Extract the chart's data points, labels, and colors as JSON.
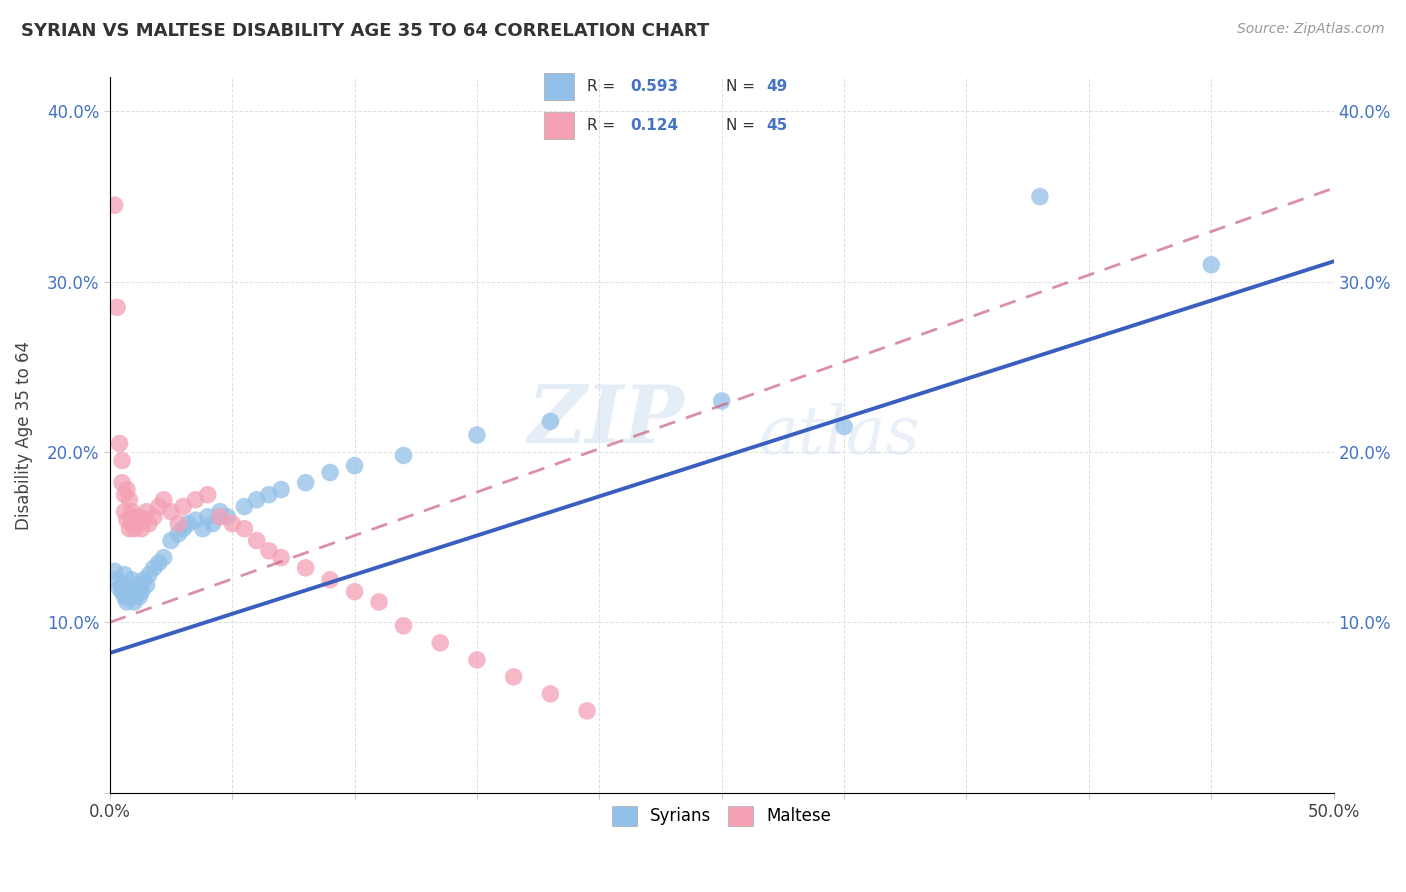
{
  "title": "SYRIAN VS MALTESE DISABILITY AGE 35 TO 64 CORRELATION CHART",
  "source": "Source: ZipAtlas.com",
  "ylabel": "Disability Age 35 to 64",
  "xlim": [
    0.0,
    0.5
  ],
  "ylim": [
    0.0,
    0.42
  ],
  "xtick_positions": [
    0.0,
    0.05,
    0.1,
    0.15,
    0.2,
    0.25,
    0.3,
    0.35,
    0.4,
    0.45,
    0.5
  ],
  "xtick_labels": [
    "0.0%",
    "",
    "",
    "",
    "",
    "",
    "",
    "",
    "",
    "",
    "50.0%"
  ],
  "ytick_positions": [
    0.0,
    0.1,
    0.2,
    0.3,
    0.4
  ],
  "ytick_labels": [
    "",
    "10.0%",
    "20.0%",
    "30.0%",
    "40.0%"
  ],
  "legend_r_syrian": "0.593",
  "legend_n_syrian": "49",
  "legend_r_maltese": "0.124",
  "legend_n_maltese": "45",
  "syrian_color": "#92C0E8",
  "maltese_color": "#F4A0B5",
  "syrian_line_color": "#3A5FBF",
  "maltese_line_color": "#CC6080",
  "watermark_zip": "ZIP",
  "watermark_atlas": "atlas",
  "background_color": "#ffffff",
  "plot_bg_color": "#ffffff",
  "grid_color": "#e0e0e0",
  "syrian_dots": [
    [
      0.002,
      0.13
    ],
    [
      0.003,
      0.125
    ],
    [
      0.004,
      0.12
    ],
    [
      0.005,
      0.118
    ],
    [
      0.005,
      0.122
    ],
    [
      0.006,
      0.115
    ],
    [
      0.006,
      0.128
    ],
    [
      0.007,
      0.112
    ],
    [
      0.007,
      0.118
    ],
    [
      0.008,
      0.115
    ],
    [
      0.008,
      0.12
    ],
    [
      0.009,
      0.118
    ],
    [
      0.009,
      0.125
    ],
    [
      0.01,
      0.112
    ],
    [
      0.01,
      0.118
    ],
    [
      0.011,
      0.122
    ],
    [
      0.012,
      0.115
    ],
    [
      0.012,
      0.12
    ],
    [
      0.013,
      0.118
    ],
    [
      0.014,
      0.125
    ],
    [
      0.015,
      0.122
    ],
    [
      0.016,
      0.128
    ],
    [
      0.018,
      0.132
    ],
    [
      0.02,
      0.135
    ],
    [
      0.022,
      0.138
    ],
    [
      0.025,
      0.148
    ],
    [
      0.028,
      0.152
    ],
    [
      0.03,
      0.155
    ],
    [
      0.032,
      0.158
    ],
    [
      0.035,
      0.16
    ],
    [
      0.038,
      0.155
    ],
    [
      0.04,
      0.162
    ],
    [
      0.042,
      0.158
    ],
    [
      0.045,
      0.165
    ],
    [
      0.048,
      0.162
    ],
    [
      0.055,
      0.168
    ],
    [
      0.06,
      0.172
    ],
    [
      0.065,
      0.175
    ],
    [
      0.07,
      0.178
    ],
    [
      0.08,
      0.182
    ],
    [
      0.09,
      0.188
    ],
    [
      0.1,
      0.192
    ],
    [
      0.12,
      0.198
    ],
    [
      0.15,
      0.21
    ],
    [
      0.18,
      0.218
    ],
    [
      0.25,
      0.23
    ],
    [
      0.3,
      0.215
    ],
    [
      0.38,
      0.35
    ],
    [
      0.45,
      0.31
    ]
  ],
  "maltese_dots": [
    [
      0.002,
      0.345
    ],
    [
      0.003,
      0.285
    ],
    [
      0.004,
      0.205
    ],
    [
      0.005,
      0.195
    ],
    [
      0.005,
      0.182
    ],
    [
      0.006,
      0.175
    ],
    [
      0.006,
      0.165
    ],
    [
      0.007,
      0.178
    ],
    [
      0.007,
      0.16
    ],
    [
      0.008,
      0.172
    ],
    [
      0.008,
      0.155
    ],
    [
      0.009,
      0.165
    ],
    [
      0.009,
      0.158
    ],
    [
      0.01,
      0.162
    ],
    [
      0.01,
      0.155
    ],
    [
      0.011,
      0.158
    ],
    [
      0.012,
      0.162
    ],
    [
      0.013,
      0.155
    ],
    [
      0.014,
      0.16
    ],
    [
      0.015,
      0.165
    ],
    [
      0.016,
      0.158
    ],
    [
      0.018,
      0.162
    ],
    [
      0.02,
      0.168
    ],
    [
      0.022,
      0.172
    ],
    [
      0.025,
      0.165
    ],
    [
      0.028,
      0.158
    ],
    [
      0.03,
      0.168
    ],
    [
      0.035,
      0.172
    ],
    [
      0.04,
      0.175
    ],
    [
      0.045,
      0.162
    ],
    [
      0.05,
      0.158
    ],
    [
      0.055,
      0.155
    ],
    [
      0.06,
      0.148
    ],
    [
      0.065,
      0.142
    ],
    [
      0.07,
      0.138
    ],
    [
      0.08,
      0.132
    ],
    [
      0.09,
      0.125
    ],
    [
      0.1,
      0.118
    ],
    [
      0.11,
      0.112
    ],
    [
      0.12,
      0.098
    ],
    [
      0.135,
      0.088
    ],
    [
      0.15,
      0.078
    ],
    [
      0.165,
      0.068
    ],
    [
      0.18,
      0.058
    ],
    [
      0.195,
      0.048
    ]
  ],
  "syrian_line": {
    "x0": 0.0,
    "y0": 0.082,
    "x1": 0.5,
    "y1": 0.312
  },
  "maltese_line": {
    "x0": 0.0,
    "y0": 0.1,
    "x1": 0.5,
    "y1": 0.355
  }
}
